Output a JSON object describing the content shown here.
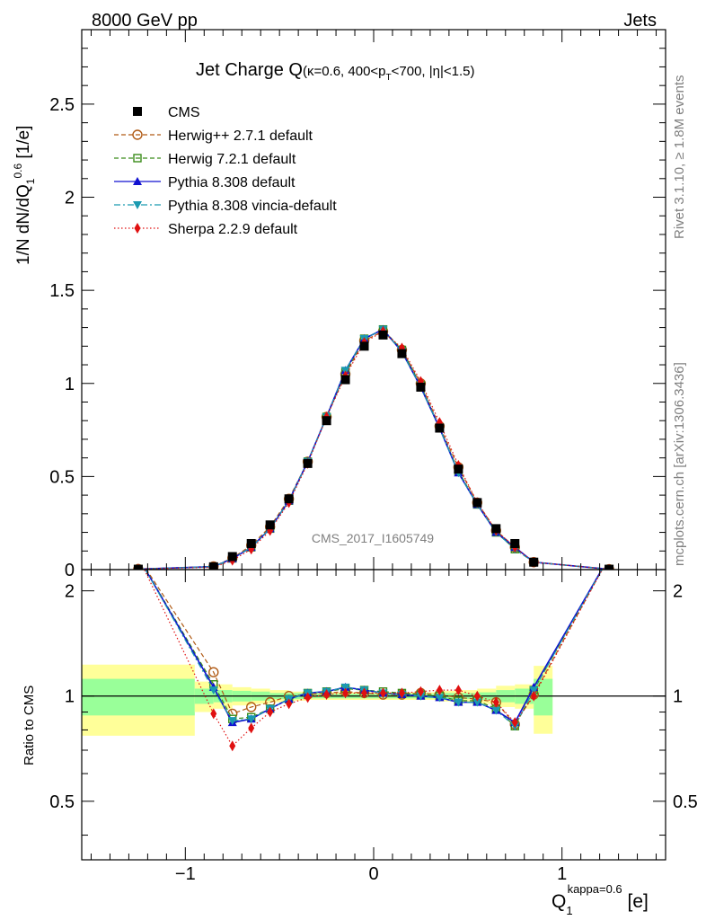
{
  "header": {
    "left": "8000 GeV pp",
    "right": "Jets"
  },
  "side": {
    "rivet": "Rivet 3.1.10, ≥ 1.8M events",
    "mcplots": "mcplots.cern.ch [arXiv:1306.3436]"
  },
  "colors": {
    "cms": "#000000",
    "herwigpp": "#b05a14",
    "herwig7": "#3a8c1a",
    "pythia": "#1010d0",
    "vincia": "#1a9ab0",
    "sherpa": "#e01010",
    "band_inner": "#99ff99",
    "band_outer": "#ffff99"
  },
  "chart_data": {
    "type": "line",
    "title": "Jet Charge Q",
    "title_sub": "(κ=0.6, 400<p",
    "title_sub_T": "T",
    "title_sub_rest": "<700, |η|<1.5)",
    "watermark": "CMS_2017_I1605749",
    "ylabel_main": "1/N dN/dQ",
    "ylabel_main_sub": "1",
    "ylabel_main_sup": "0.6",
    "ylabel_main_unit": " [1/e]",
    "ylabel_ratio": "Ratio to CMS",
    "xlabel": "Q",
    "xlabel_sub": "1",
    "xlabel_sup": "kappa=0.6",
    "xlabel_unit": " [e]",
    "xlim": [
      -1.55,
      1.55
    ],
    "ylim_main": [
      0,
      2.9
    ],
    "ylim_ratio": [
      0.34,
      2.3
    ],
    "main_yticks": [
      "0",
      "0.5",
      "1",
      "1.5",
      "2",
      "2.5"
    ],
    "main_ytick_values": [
      0,
      0.5,
      1,
      1.5,
      2,
      2.5
    ],
    "ratio_yticks": [
      "0.5",
      "1",
      "2"
    ],
    "ratio_ytick_values": [
      0.5,
      1,
      2
    ],
    "xticks": [
      "−1",
      "0",
      "1"
    ],
    "xtick_values": [
      -1,
      0,
      1
    ],
    "legend_position": "top-left",
    "x": [
      -1.25,
      -0.85,
      -0.75,
      -0.65,
      -0.55,
      -0.45,
      -0.35,
      -0.25,
      -0.15,
      -0.05,
      0.05,
      0.15,
      0.25,
      0.35,
      0.45,
      0.55,
      0.65,
      0.75,
      0.85,
      1.25
    ],
    "band_edges": [
      -1.55,
      -0.95,
      -0.85,
      -0.75,
      -0.65,
      -0.55,
      -0.45,
      -0.35,
      -0.25,
      -0.15,
      -0.05,
      0.05,
      0.15,
      0.25,
      0.35,
      0.45,
      0.55,
      0.65,
      0.75,
      0.85,
      0.95,
      1.55
    ],
    "band_inner": [
      0.12,
      0.05,
      0.04,
      0.035,
      0.03,
      0.02,
      0.02,
      0.015,
      0.015,
      0.015,
      0.015,
      0.015,
      0.015,
      0.015,
      0.02,
      0.02,
      0.025,
      0.04,
      0.05,
      0.12
    ],
    "band_outer": [
      0.23,
      0.1,
      0.08,
      0.06,
      0.05,
      0.04,
      0.03,
      0.025,
      0.025,
      0.025,
      0.025,
      0.025,
      0.025,
      0.025,
      0.035,
      0.04,
      0.05,
      0.07,
      0.08,
      0.22
    ],
    "series": [
      {
        "name": "CMS",
        "key": "cms",
        "marker": "square",
        "dash": "",
        "values": [
          0.002,
          0.015,
          0.07,
          0.14,
          0.24,
          0.38,
          0.57,
          0.8,
          1.02,
          1.2,
          1.26,
          1.16,
          0.98,
          0.76,
          0.54,
          0.36,
          0.22,
          0.14,
          0.04,
          0.002
        ],
        "ratio": []
      },
      {
        "name": "Herwig++ 2.7.1 default",
        "key": "herwigpp",
        "marker": "circle-open",
        "dash": "5,3",
        "values": [
          0.003,
          0.017,
          0.062,
          0.13,
          0.23,
          0.38,
          0.58,
          0.82,
          1.05,
          1.23,
          1.28,
          1.18,
          1.0,
          0.77,
          0.55,
          0.36,
          0.21,
          0.12,
          0.04,
          0.002
        ],
        "ratio": [
          2.5,
          1.17,
          0.89,
          0.93,
          0.96,
          1.0,
          1.01,
          1.02,
          1.03,
          1.02,
          1.01,
          1.01,
          1.02,
          1.01,
          0.99,
          0.98,
          0.96,
          0.83,
          1.01,
          2.5
        ]
      },
      {
        "name": "Herwig 7.2.1 default",
        "key": "herwig7",
        "marker": "square-open",
        "dash": "5,3",
        "values": [
          0.003,
          0.016,
          0.06,
          0.12,
          0.22,
          0.37,
          0.58,
          0.82,
          1.06,
          1.24,
          1.29,
          1.18,
          0.99,
          0.76,
          0.53,
          0.35,
          0.2,
          0.11,
          0.04,
          0.002
        ],
        "ratio": [
          2.5,
          1.08,
          0.86,
          0.87,
          0.92,
          0.98,
          1.02,
          1.03,
          1.05,
          1.04,
          1.03,
          1.02,
          1.01,
          1.0,
          0.97,
          0.97,
          0.92,
          0.82,
          1.04,
          2.5
        ]
      },
      {
        "name": "Pythia 8.308 default",
        "key": "pythia",
        "marker": "triangle-up",
        "dash": "",
        "values": [
          0.003,
          0.016,
          0.059,
          0.12,
          0.22,
          0.37,
          0.58,
          0.82,
          1.07,
          1.24,
          1.29,
          1.17,
          0.98,
          0.76,
          0.52,
          0.35,
          0.2,
          0.12,
          0.04,
          0.002
        ],
        "ratio": [
          2.5,
          1.06,
          0.84,
          0.86,
          0.92,
          0.98,
          1.02,
          1.03,
          1.06,
          1.04,
          1.02,
          1.01,
          1.0,
          0.99,
          0.96,
          0.96,
          0.91,
          0.84,
          1.06,
          2.5
        ]
      },
      {
        "name": "Pythia 8.308 vincia-default",
        "key": "vincia",
        "marker": "triangle-down",
        "dash": "7,3,2,3",
        "values": [
          0.003,
          0.016,
          0.059,
          0.12,
          0.22,
          0.37,
          0.58,
          0.82,
          1.07,
          1.24,
          1.29,
          1.17,
          0.98,
          0.76,
          0.52,
          0.35,
          0.2,
          0.11,
          0.04,
          0.002
        ],
        "ratio": [
          2.5,
          1.04,
          0.85,
          0.86,
          0.92,
          0.98,
          1.02,
          1.03,
          1.06,
          1.04,
          1.02,
          1.01,
          1.0,
          0.99,
          0.96,
          0.96,
          0.91,
          0.82,
          1.04,
          2.5
        ]
      },
      {
        "name": "Sherpa 2.2.9 default",
        "key": "sherpa",
        "marker": "diamond",
        "dash": "1.5,2.5",
        "values": [
          0.003,
          0.013,
          0.05,
          0.11,
          0.21,
          0.36,
          0.57,
          0.82,
          1.04,
          1.22,
          1.28,
          1.19,
          1.01,
          0.79,
          0.56,
          0.36,
          0.21,
          0.12,
          0.04,
          0.002
        ],
        "ratio": [
          2.5,
          0.89,
          0.72,
          0.81,
          0.9,
          0.95,
          0.99,
          1.01,
          1.02,
          1.02,
          1.02,
          1.02,
          1.03,
          1.04,
          1.04,
          1.0,
          0.96,
          0.84,
          1.0,
          2.5
        ]
      }
    ]
  }
}
